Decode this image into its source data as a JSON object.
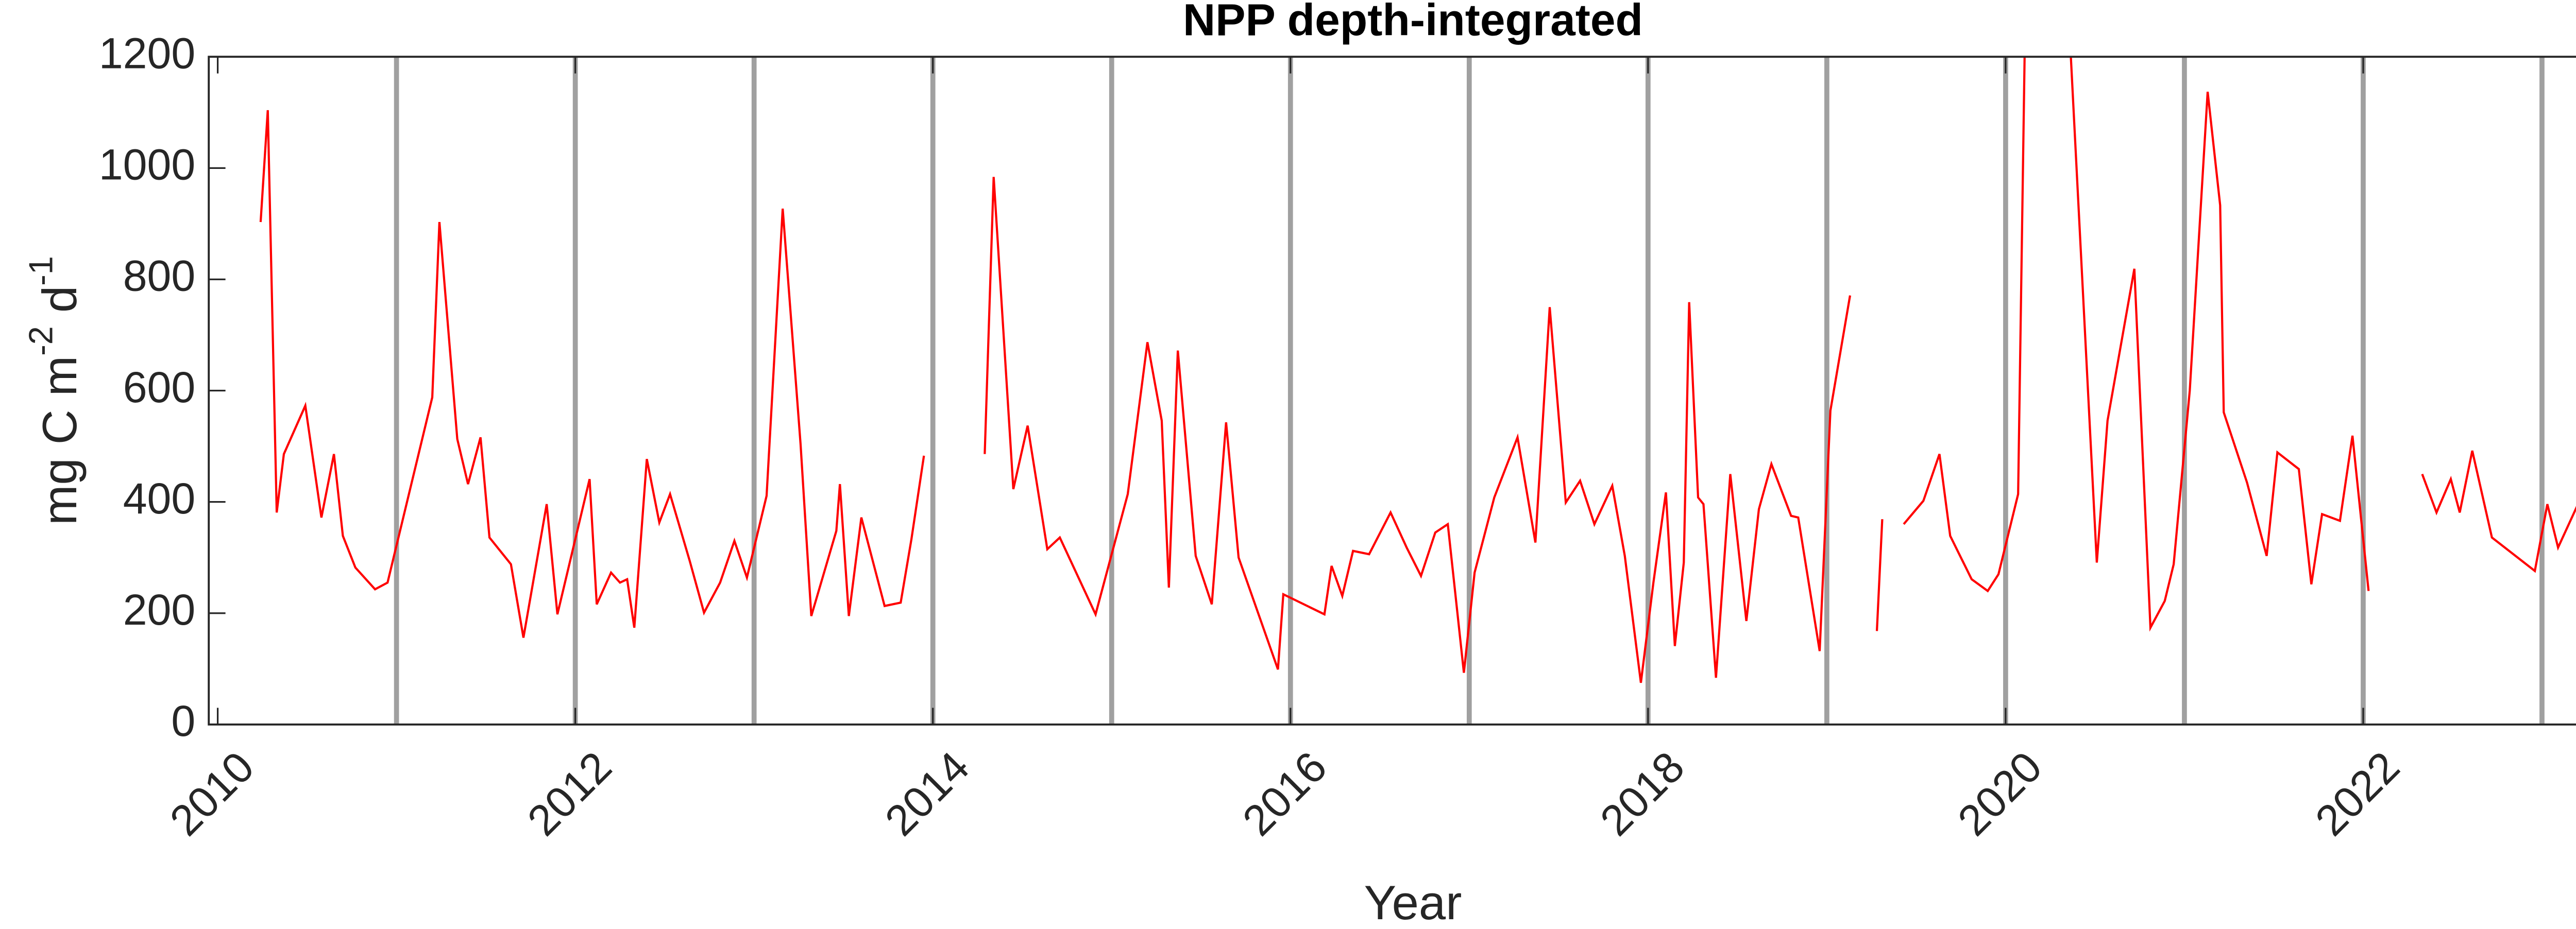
{
  "chart_data": {
    "type": "line",
    "title": "NPP depth-integrated",
    "xlabel": "Year",
    "ylabel_parts": [
      "mg C m",
      "-2",
      " d",
      "-1"
    ],
    "xlim": [
      2009.95,
      2023.42
    ],
    "ylim": [
      0,
      1200
    ],
    "xticks": [
      2010,
      2012,
      2014,
      2016,
      2018,
      2020,
      2022
    ],
    "yticks": [
      0,
      200,
      400,
      600,
      800,
      1000,
      1200
    ],
    "year_lines": [
      2011,
      2012,
      2013,
      2014,
      2015,
      2016,
      2017,
      2018,
      2019,
      2020,
      2021,
      2022,
      2023
    ],
    "year_line_color": "#a0a0a0",
    "series": [
      {
        "color": "#ff0000",
        "x": [
          2010.24,
          2010.28,
          2010.33,
          2010.37,
          2010.49,
          2010.58,
          2010.65,
          2010.7,
          2010.77,
          2010.88,
          2010.95,
          2011.2,
          2011.24,
          2011.34,
          2011.4,
          2011.47,
          2011.52,
          2011.64,
          2011.71,
          2011.84,
          2011.9,
          2012.08,
          2012.12,
          2012.2,
          2012.25,
          2012.29,
          2012.33,
          2012.4,
          2012.47,
          2012.53,
          2012.64,
          2012.72,
          2012.81,
          2012.89,
          2012.96,
          2013.07,
          2013.16,
          2013.26,
          2013.32,
          2013.46,
          2013.48,
          2013.53,
          2013.6,
          2013.73,
          2013.82,
          2013.88,
          2013.95,
          null,
          2014.29,
          2014.34,
          2014.45,
          2014.53,
          2014.64,
          2014.71,
          2014.91,
          2015.09,
          2015.2,
          2015.28,
          2015.32,
          2015.37,
          2015.47,
          2015.56,
          2015.64,
          2015.71,
          2015.93,
          2015.96,
          2016.19,
          2016.23,
          2016.29,
          2016.35,
          2016.44,
          2016.56,
          2016.65,
          2016.73,
          2016.81,
          2016.88,
          2016.97,
          2017.03,
          2017.14,
          2017.27,
          2017.37,
          2017.45,
          2017.54,
          2017.62,
          2017.7,
          2017.8,
          2017.87,
          2017.96,
          2018.03,
          2018.1,
          2018.15,
          2018.2,
          2018.23,
          2018.28,
          2018.31,
          2018.38,
          2018.46,
          2018.55,
          2018.62,
          2018.69,
          2018.8,
          2018.84,
          2018.96,
          2019.02,
          2019.13,
          null,
          2019.28,
          2019.31,
          null,
          2019.43,
          2019.54,
          2019.63,
          2019.69,
          2019.81,
          2019.9,
          2019.96,
          2020.07,
          2020.12,
          2020.36,
          2020.51,
          2020.57,
          2020.72,
          2020.81,
          2020.89,
          2020.94,
          2021.03,
          2021.13,
          2021.2,
          2021.22,
          2021.35,
          2021.46,
          2021.52,
          2021.64,
          2021.71,
          2021.77,
          2021.87,
          2021.94,
          2022.03,
          null,
          2022.33,
          2022.41,
          2022.49,
          2022.54,
          2022.61,
          2022.72,
          2022.96,
          2023.03,
          2023.09,
          2023.21,
          null,
          2023.29,
          2023.35,
          2023.41
        ],
        "values": [
          903,
          1104,
          381,
          486,
          573,
          372,
          486,
          339,
          282,
          243,
          255,
          588,
          903,
          513,
          432,
          516,
          336,
          288,
          156,
          396,
          198,
          441,
          216,
          273,
          255,
          261,
          174,
          477,
          363,
          414,
          294,
          201,
          255,
          330,
          264,
          411,
          927,
          504,
          195,
          348,
          432,
          195,
          372,
          213,
          219,
          333,
          483,
          null,
          486,
          984,
          423,
          537,
          315,
          336,
          198,
          414,
          687,
          546,
          246,
          672,
          303,
          216,
          543,
          300,
          99,
          234,
          198,
          285,
          231,
          312,
          306,
          381,
          318,
          267,
          345,
          360,
          93,
          273,
          408,
          516,
          327,
          750,
          399,
          438,
          360,
          429,
          303,
          75,
          255,
          417,
          141,
          291,
          759,
          408,
          396,
          84,
          450,
          186,
          387,
          468,
          375,
          372,
          132,
          564,
          771,
          null,
          168,
          369,
          null,
          360,
          402,
          486,
          339,
          261,
          240,
          270,
          414,
          1500,
          1230,
          291,
          546,
          819,
          174,
          222,
          288,
          600,
          1137,
          933,
          561,
          435,
          303,
          489,
          459,
          252,
          378,
          366,
          519,
          240,
          null,
          450,
          381,
          441,
          381,
          492,
          336,
          276,
          396,
          318,
          402,
          null,
          402,
          402,
          486
        ]
      }
    ]
  }
}
